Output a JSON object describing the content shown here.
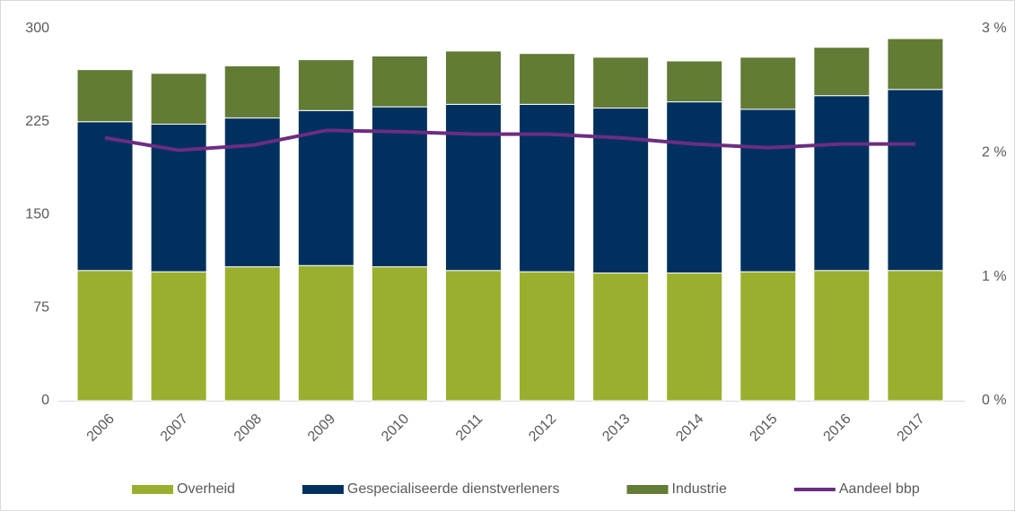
{
  "chart_data": {
    "type": "bar",
    "stacked": true,
    "categories": [
      "2006",
      "2007",
      "2008",
      "2009",
      "2010",
      "2011",
      "2012",
      "2013",
      "2014",
      "2015",
      "2016",
      "2017"
    ],
    "series": [
      {
        "name": "Overheid",
        "color": "#9aaf2e",
        "values": [
          105,
          104,
          108,
          109,
          108,
          105,
          104,
          103,
          103,
          104,
          105,
          105
        ]
      },
      {
        "name": "Gespecialiseerde dienstverleners",
        "color": "#00305e",
        "values": [
          120,
          119,
          120,
          125,
          129,
          134,
          135,
          133,
          138,
          131,
          141,
          146
        ]
      },
      {
        "name": "Industrie",
        "color": "#627b35",
        "values": [
          42,
          41,
          42,
          41,
          41,
          43,
          41,
          41,
          33,
          42,
          39,
          41
        ]
      },
      {
        "name": "Aandeel bbp",
        "type": "line",
        "axis": "y2",
        "color": "#6b2d82",
        "values": [
          2.12,
          2.02,
          2.06,
          2.18,
          2.17,
          2.15,
          2.15,
          2.12,
          2.07,
          2.04,
          2.07,
          2.07
        ]
      }
    ],
    "ylim": [
      0,
      300
    ],
    "yticks": [
      0,
      75,
      150,
      225,
      300
    ],
    "y2lim": [
      0,
      3
    ],
    "y2ticks": [
      {
        "value": 0,
        "label": "0 %"
      },
      {
        "value": 1,
        "label": "1 %"
      },
      {
        "value": 2,
        "label": "2 %"
      },
      {
        "value": 3,
        "label": "3 %"
      }
    ],
    "grid": false,
    "legend": "bottom"
  }
}
